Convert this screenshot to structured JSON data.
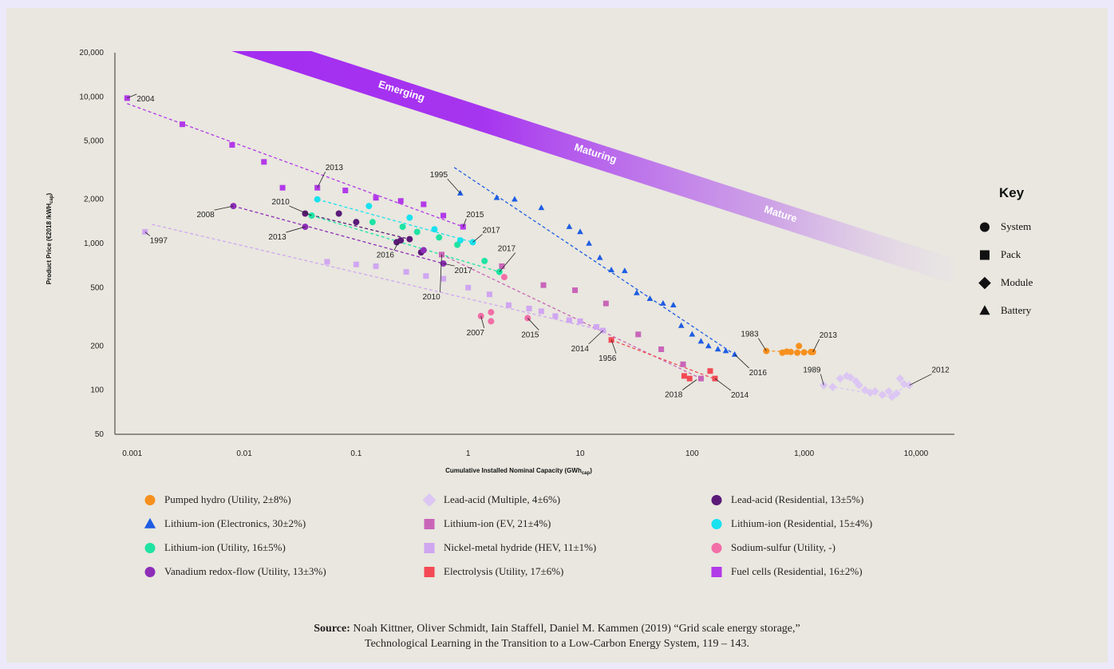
{
  "chart_data": {
    "type": "scatter",
    "title": "",
    "xlabel": "Cumulative Installed Nominal Capacity (GWh",
    "xlabel_sub": "cap",
    "xlabel_end": ")",
    "ylabel": "Product Price (€2018 /kWH",
    "ylabel_sub": "cap",
    "ylabel_end": ")",
    "xscale": "log",
    "yscale": "log",
    "xlim": [
      0.0007,
      22000
    ],
    "ylim": [
      50,
      20000
    ],
    "xticks": [
      0.001,
      0.01,
      0.1,
      1,
      10,
      100,
      1000,
      10000
    ],
    "xtick_labels": [
      "0.001",
      "0.01",
      "0.1",
      "1",
      "10",
      "100",
      "1,000",
      "10,000"
    ],
    "yticks": [
      50,
      100,
      200,
      500,
      1000,
      2000,
      5000,
      10000,
      20000
    ],
    "ytick_labels": [
      "50",
      "100",
      "200",
      "500",
      "1,000",
      "2,000",
      "5,000",
      "10,000",
      "20,000"
    ],
    "band": {
      "labels": [
        "Emerging",
        "Maturing",
        "Mature"
      ],
      "color": "#a32cf0"
    },
    "series": [
      {
        "name": "Pumped hydro (Utility, 2±8%)",
        "color": "#f7901e",
        "marker": "circle",
        "points": [
          [
            460,
            185
          ],
          [
            640,
            180
          ],
          [
            700,
            183
          ],
          [
            760,
            182
          ],
          [
            870,
            180
          ],
          [
            900,
            200
          ],
          [
            1000,
            181
          ],
          [
            1150,
            182
          ],
          [
            1200,
            182
          ]
        ],
        "trend": [
          [
            460,
            185
          ],
          [
            1200,
            182
          ]
        ]
      },
      {
        "name": "Lead-acid (Multiple, 4±6%)",
        "color": "#dcc6f3",
        "marker": "diamond",
        "points": [
          [
            1500,
            108
          ],
          [
            1800,
            105
          ],
          [
            2100,
            120
          ],
          [
            2400,
            125
          ],
          [
            2600,
            122
          ],
          [
            2900,
            115
          ],
          [
            3100,
            108
          ],
          [
            3500,
            100
          ],
          [
            3900,
            96
          ],
          [
            4300,
            98
          ],
          [
            5000,
            93
          ],
          [
            5700,
            98
          ],
          [
            6100,
            90
          ],
          [
            6700,
            95
          ],
          [
            7200,
            120
          ],
          [
            7800,
            110
          ],
          [
            8700,
            108
          ]
        ],
        "trend": [
          [
            1500,
            108
          ],
          [
            3900,
            95
          ],
          [
            5800,
            90
          ],
          [
            8700,
            110
          ]
        ]
      },
      {
        "name": "Lead-acid (Residential, 13±5%)",
        "color": "#5b1a78",
        "marker": "circle",
        "points": [
          [
            0.035,
            1600
          ],
          [
            0.1,
            1400
          ],
          [
            0.23,
            1020
          ],
          [
            0.25,
            1050
          ],
          [
            0.3,
            1070
          ],
          [
            0.38,
            870
          ],
          [
            0.07,
            1600
          ]
        ],
        "trend": [
          [
            0.035,
            1600
          ],
          [
            0.3,
            1070
          ]
        ]
      },
      {
        "name": "Lithium-ion (Electronics, 30±2%)",
        "color": "#1e5de3",
        "marker": "triangle",
        "points": [
          [
            0.85,
            2200
          ],
          [
            1.8,
            2050
          ],
          [
            2.6,
            2000
          ],
          [
            4.5,
            1750
          ],
          [
            8,
            1300
          ],
          [
            10,
            1200
          ],
          [
            12,
            1000
          ],
          [
            15,
            800
          ],
          [
            19,
            660
          ],
          [
            25,
            650
          ],
          [
            32,
            460
          ],
          [
            42,
            420
          ],
          [
            55,
            390
          ],
          [
            68,
            380
          ],
          [
            80,
            275
          ],
          [
            100,
            240
          ],
          [
            120,
            215
          ],
          [
            140,
            200
          ],
          [
            170,
            190
          ],
          [
            200,
            185
          ],
          [
            240,
            175
          ]
        ],
        "trend": [
          [
            0.75,
            3300
          ],
          [
            240,
            175
          ]
        ]
      },
      {
        "name": "Lithium-ion (EV, 21±4%)",
        "color": "#c965b8",
        "marker": "square",
        "points": [
          [
            0.58,
            840
          ],
          [
            2,
            700
          ],
          [
            4.7,
            520
          ],
          [
            9,
            480
          ],
          [
            17,
            390
          ],
          [
            33,
            240
          ],
          [
            53,
            190
          ],
          [
            83,
            150
          ],
          [
            120,
            120
          ]
        ],
        "trend": [
          [
            0.58,
            840
          ],
          [
            120,
            120
          ]
        ]
      },
      {
        "name": "Lithium-ion (Residential, 15±4%)",
        "color": "#19e1ef",
        "marker": "circle",
        "points": [
          [
            0.045,
            2000
          ],
          [
            0.13,
            1800
          ],
          [
            0.3,
            1500
          ],
          [
            0.5,
            1250
          ],
          [
            0.85,
            1050
          ],
          [
            1.1,
            1020
          ]
        ],
        "trend": [
          [
            0.045,
            2000
          ],
          [
            1.1,
            1020
          ]
        ]
      },
      {
        "name": "Lithium-ion (Utility, 16±5%)",
        "color": "#1fe3a3",
        "marker": "circle",
        "points": [
          [
            0.04,
            1550
          ],
          [
            0.14,
            1400
          ],
          [
            0.26,
            1300
          ],
          [
            0.35,
            1200
          ],
          [
            0.55,
            1100
          ],
          [
            0.8,
            980
          ],
          [
            1.4,
            760
          ],
          [
            1.9,
            640
          ]
        ],
        "trend": [
          [
            0.04,
            1550
          ],
          [
            1.9,
            640
          ]
        ]
      },
      {
        "name": "Nickel-metal hydride (HEV, 11±1%)",
        "color": "#d0a6f1",
        "marker": "square",
        "points": [
          [
            0.0013,
            1200
          ],
          [
            0.055,
            750
          ],
          [
            0.1,
            720
          ],
          [
            0.15,
            700
          ],
          [
            0.28,
            640
          ],
          [
            0.42,
            600
          ],
          [
            0.6,
            575
          ],
          [
            1,
            500
          ],
          [
            1.55,
            450
          ],
          [
            2.3,
            380
          ],
          [
            3.5,
            360
          ],
          [
            4.5,
            345
          ],
          [
            6,
            320
          ],
          [
            8,
            300
          ],
          [
            10,
            295
          ],
          [
            14,
            270
          ],
          [
            16,
            255
          ]
        ],
        "trend": [
          [
            0.0015,
            1350
          ],
          [
            18,
            250
          ]
        ]
      },
      {
        "name": "Sodium-sulfur (Utility, -)",
        "color": "#f26ea7",
        "marker": "circle",
        "points": [
          [
            1.3,
            320
          ],
          [
            1.6,
            340
          ],
          [
            1.6,
            295
          ],
          [
            2.1,
            590
          ],
          [
            3.4,
            310
          ]
        ],
        "trend": []
      },
      {
        "name": "Vanadium redox-flow (Utility, 13±3%)",
        "color": "#8e2db8",
        "marker": "circle",
        "points": [
          [
            0.008,
            1800
          ],
          [
            0.035,
            1300
          ],
          [
            0.4,
            900
          ],
          [
            0.6,
            730
          ]
        ],
        "trend": [
          [
            0.008,
            1800
          ],
          [
            0.6,
            730
          ]
        ]
      },
      {
        "name": "Electrolysis (Utility, 17±6%)",
        "color": "#f34a55",
        "marker": "square",
        "points": [
          [
            19,
            220
          ],
          [
            85,
            125
          ],
          [
            95,
            120
          ],
          [
            145,
            135
          ],
          [
            160,
            120
          ]
        ],
        "trend": [
          [
            19,
            220
          ],
          [
            165,
            118
          ]
        ]
      },
      {
        "name": "Fuel cells (Residential, 16±2%)",
        "color": "#b23ae8",
        "marker": "square",
        "points": [
          [
            0.0009,
            9800
          ],
          [
            0.0028,
            6500
          ],
          [
            0.0078,
            4700
          ],
          [
            0.015,
            3600
          ],
          [
            0.022,
            2400
          ],
          [
            0.045,
            2400
          ],
          [
            0.08,
            2300
          ],
          [
            0.15,
            2050
          ],
          [
            0.25,
            1950
          ],
          [
            0.4,
            1850
          ],
          [
            0.6,
            1550
          ],
          [
            0.9,
            1300
          ]
        ],
        "trend": [
          [
            0.0009,
            9000
          ],
          [
            0.9,
            1300
          ]
        ]
      }
    ],
    "annotations": [
      {
        "text": "2004",
        "x": 0.0009,
        "y": 9800,
        "dx": 12,
        "dy": 4
      },
      {
        "text": "1997",
        "x": 0.0013,
        "y": 1200,
        "dx": 6,
        "dy": 14
      },
      {
        "text": "2008",
        "x": 0.008,
        "y": 1800,
        "dx": -46,
        "dy": 14
      },
      {
        "text": "2013",
        "x": 0.045,
        "y": 2400,
        "dx": 10,
        "dy": -22
      },
      {
        "text": "2010",
        "x": 0.04,
        "y": 1550,
        "dx": -50,
        "dy": -14
      },
      {
        "text": "2013",
        "x": 0.035,
        "y": 1300,
        "dx": -46,
        "dy": 16
      },
      {
        "text": "1995",
        "x": 0.85,
        "y": 2200,
        "dx": -38,
        "dy": -20
      },
      {
        "text": "2015",
        "x": 0.9,
        "y": 1300,
        "dx": 4,
        "dy": -12
      },
      {
        "text": "2017",
        "x": 1.1,
        "y": 1020,
        "dx": 12,
        "dy": -12
      },
      {
        "text": "2016",
        "x": 0.24,
        "y": 1030,
        "dx": -28,
        "dy": 20
      },
      {
        "text": "2017",
        "x": 1.9,
        "y": 640,
        "dx": -2,
        "dy": -26
      },
      {
        "text": "2017",
        "x": 0.6,
        "y": 730,
        "dx": 14,
        "dy": 12
      },
      {
        "text": "2010",
        "x": 0.58,
        "y": 840,
        "dx": -24,
        "dy": 56
      },
      {
        "text": "2007",
        "x": 1.3,
        "y": 320,
        "dx": -18,
        "dy": 24
      },
      {
        "text": "2015",
        "x": 3.4,
        "y": 310,
        "dx": -8,
        "dy": 24
      },
      {
        "text": "2014",
        "x": 16,
        "y": 255,
        "dx": -40,
        "dy": 26
      },
      {
        "text": "1956",
        "x": 19,
        "y": 220,
        "dx": -16,
        "dy": 26
      },
      {
        "text": "1983",
        "x": 460,
        "y": 185,
        "dx": -32,
        "dy": -18
      },
      {
        "text": "2013",
        "x": 1200,
        "y": 182,
        "dx": 8,
        "dy": -18
      },
      {
        "text": "2016",
        "x": 240,
        "y": 175,
        "dx": 18,
        "dy": 26
      },
      {
        "text": "2018",
        "x": 110,
        "y": 118,
        "dx": -40,
        "dy": 22
      },
      {
        "text": "2014",
        "x": 160,
        "y": 120,
        "dx": 20,
        "dy": 24
      },
      {
        "text": "1989",
        "x": 1500,
        "y": 108,
        "dx": -26,
        "dy": -16
      },
      {
        "text": "2012",
        "x": 8700,
        "y": 108,
        "dx": 28,
        "dy": -16
      }
    ]
  },
  "key": {
    "title": "Key",
    "items": [
      {
        "label": "System",
        "shape": "circle"
      },
      {
        "label": "Pack",
        "shape": "square"
      },
      {
        "label": "Module",
        "shape": "diamond"
      },
      {
        "label": "Battery",
        "shape": "triangle"
      }
    ]
  },
  "source": {
    "bold": "Source:",
    "line1": " Noah Kittner, Oliver Schmidt, Iain Staffell, Daniel M. Kammen (2019) “Grid scale energy storage,”",
    "line2": "Technological Learning in the Transition to a Low-Carbon Energy System, 119 – 143."
  }
}
